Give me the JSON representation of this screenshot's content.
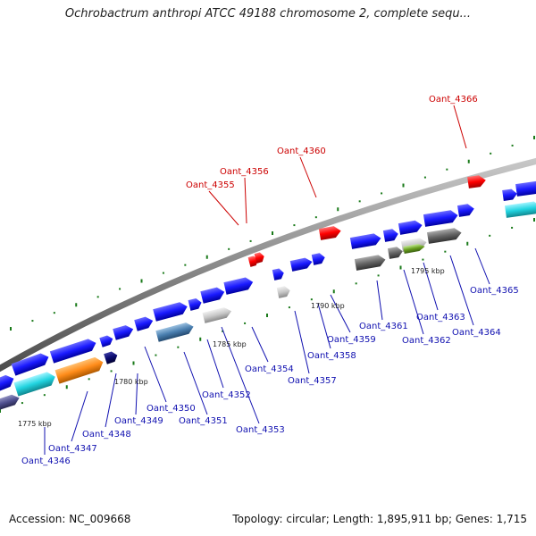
{
  "title": "Ochrobactrum anthropi ATCC 49188 chromosome 2, complete sequ...",
  "footer": {
    "accession": "Accession: NC_009668",
    "summary": "Topology: circular; Length: 1,895,911 bp; Genes: 1,715"
  },
  "colors": {
    "backbone": "#8a8a8a",
    "gene_blue": "#1a1aff",
    "gene_red": "#ff0000",
    "label_blue": "#1010b0",
    "label_red": "#cc0000",
    "tick_green": "#1a7a1a",
    "cyan": "#22d4e0",
    "orange": "#ff8c1a",
    "gray": "#c8c8c8",
    "dark_gray": "#666666",
    "steel": "#4a7fb0",
    "navy": "#0a0a70",
    "olive": "#6aa020"
  },
  "ticks": [
    "1775 kbp",
    "1780 kbp",
    "1785 kbp",
    "1790 kbp",
    "1795 kbp"
  ],
  "gene_labels": [
    {
      "text": "Oant_4346",
      "color": "blue"
    },
    {
      "text": "Oant_4347",
      "color": "blue"
    },
    {
      "text": "Oant_4348",
      "color": "blue"
    },
    {
      "text": "Oant_4349",
      "color": "blue"
    },
    {
      "text": "Oant_4350",
      "color": "blue"
    },
    {
      "text": "Oant_4351",
      "color": "blue"
    },
    {
      "text": "Oant_4352",
      "color": "blue"
    },
    {
      "text": "Oant_4353",
      "color": "blue"
    },
    {
      "text": "Oant_4354",
      "color": "blue"
    },
    {
      "text": "Oant_4355",
      "color": "red"
    },
    {
      "text": "Oant_4356",
      "color": "red"
    },
    {
      "text": "Oant_4357",
      "color": "blue"
    },
    {
      "text": "Oant_4358",
      "color": "blue"
    },
    {
      "text": "Oant_4359",
      "color": "blue"
    },
    {
      "text": "Oant_4360",
      "color": "red"
    },
    {
      "text": "Oant_4361",
      "color": "blue"
    },
    {
      "text": "Oant_4362",
      "color": "blue"
    },
    {
      "text": "Oant_4363",
      "color": "blue"
    },
    {
      "text": "Oant_4364",
      "color": "blue"
    },
    {
      "text": "Oant_4365",
      "color": "blue"
    },
    {
      "text": "Oant_4366",
      "color": "red"
    }
  ]
}
